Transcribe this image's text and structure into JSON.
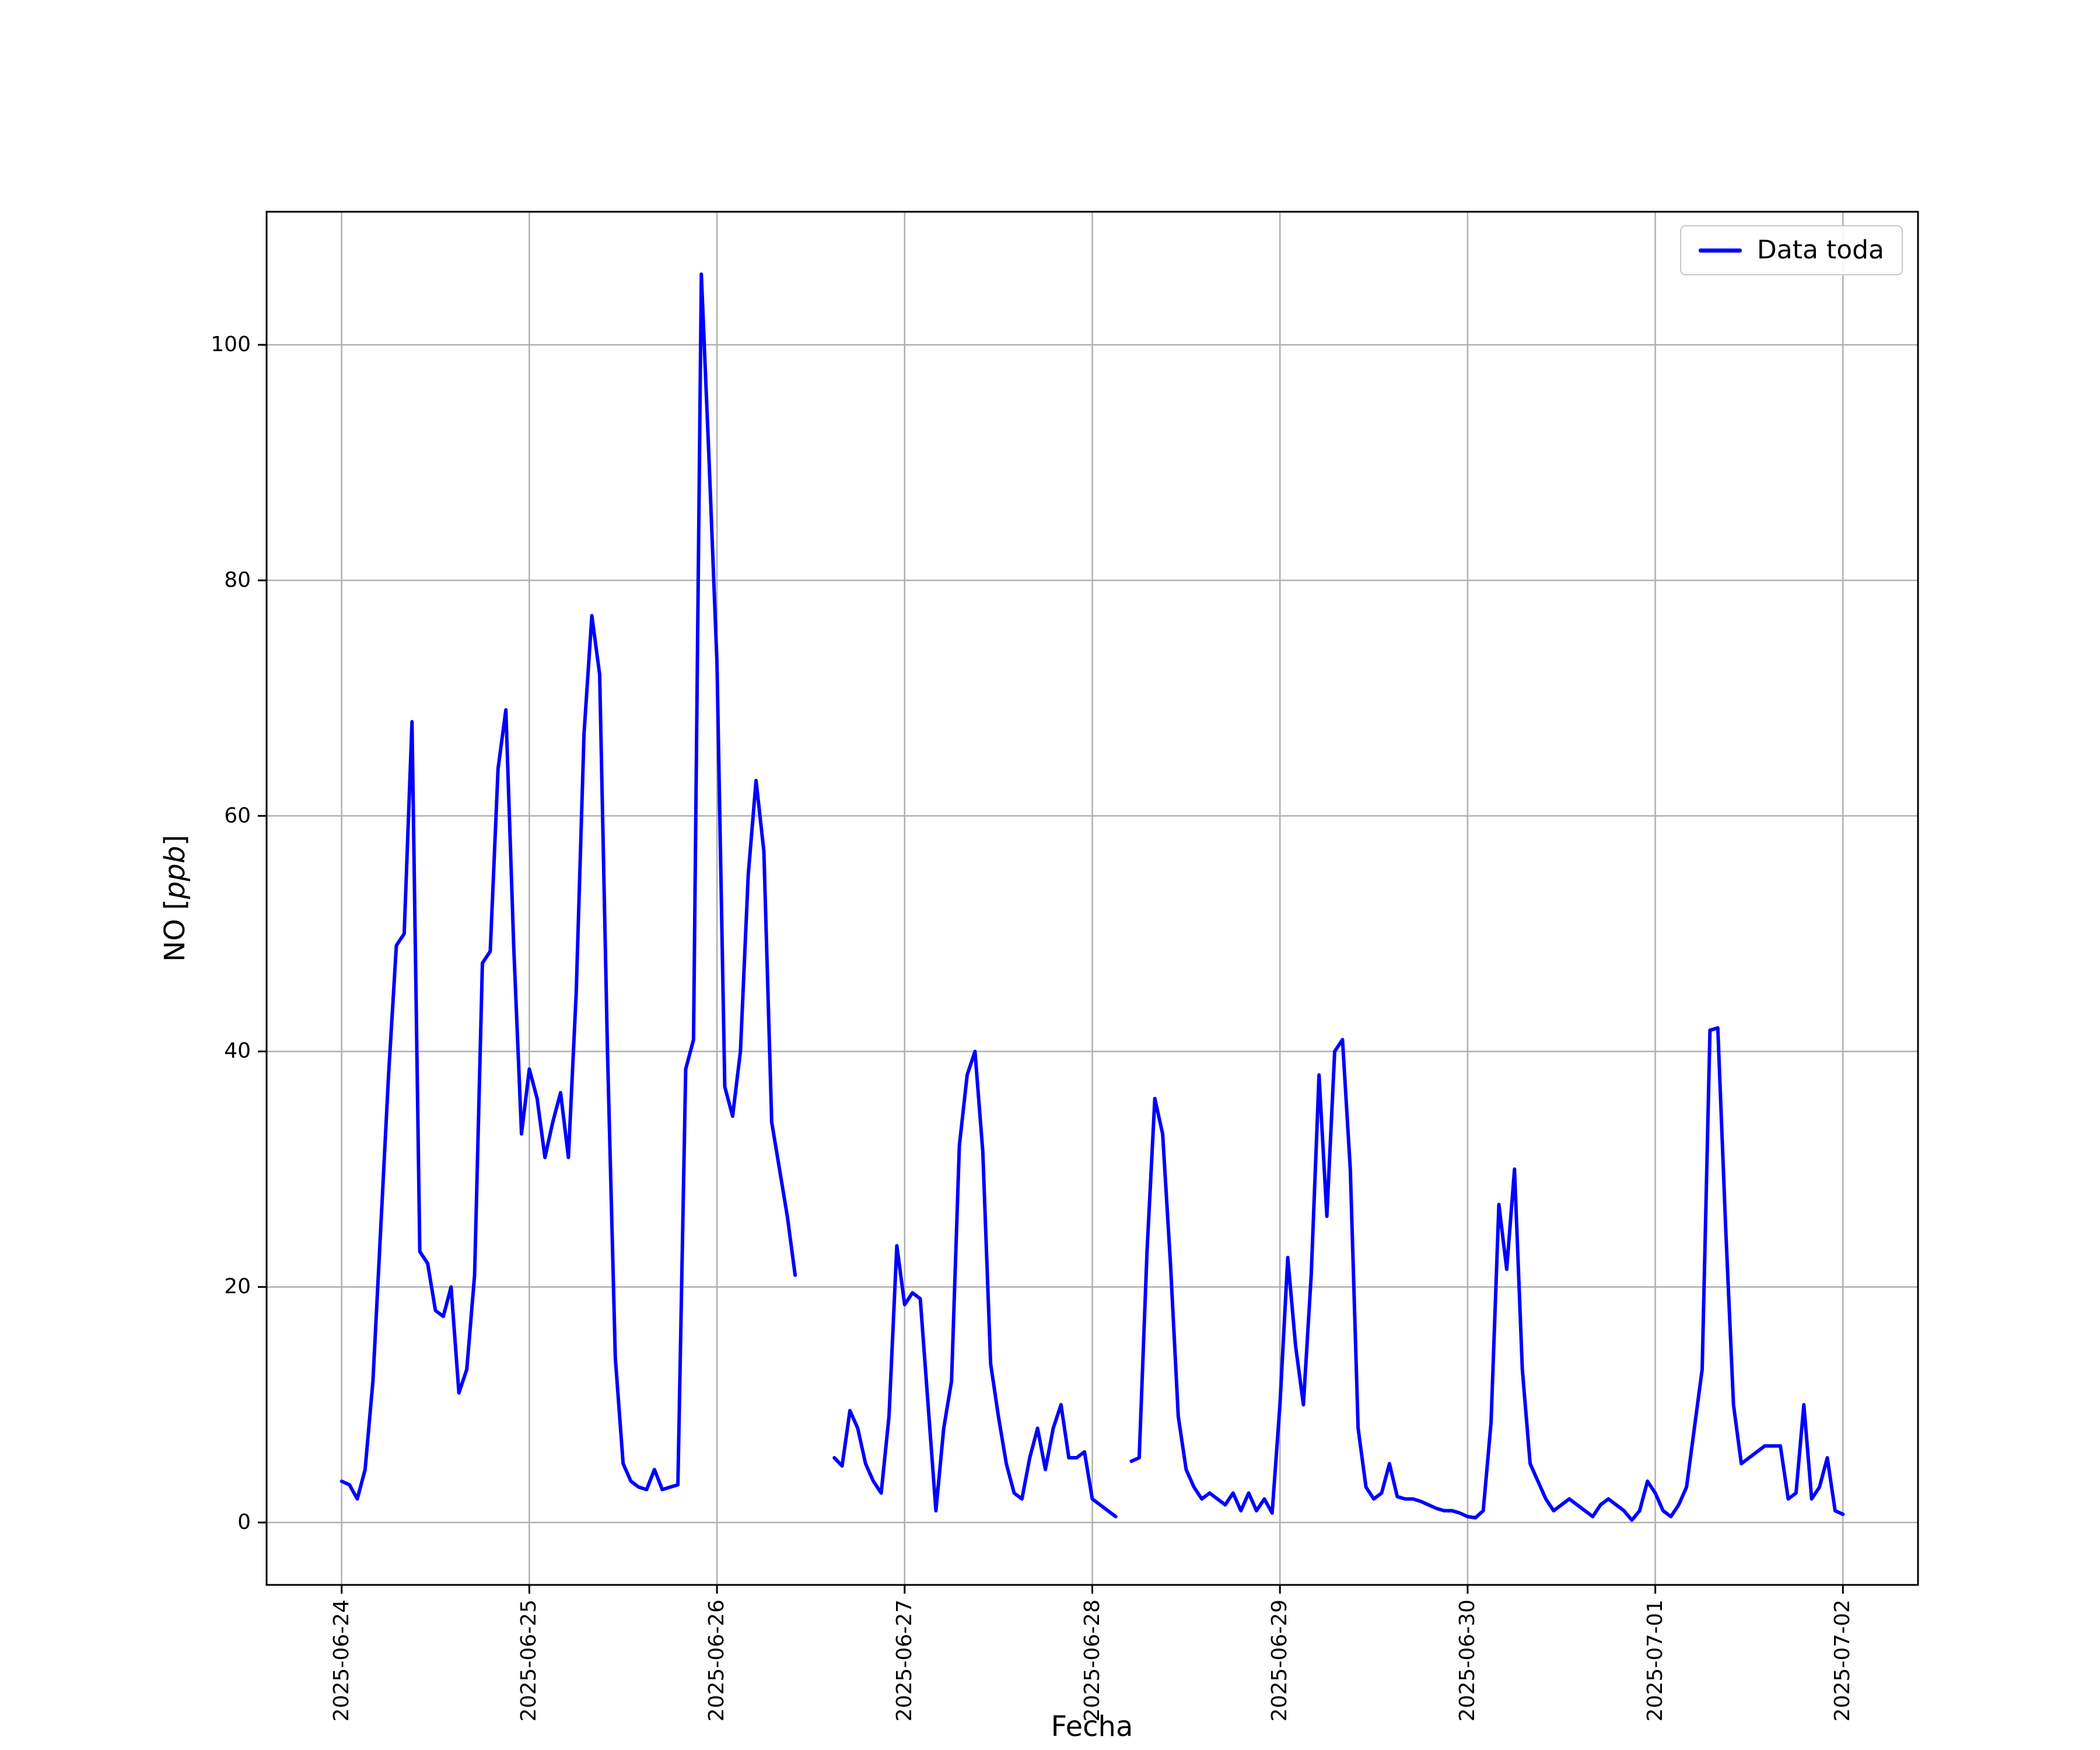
{
  "figure": {
    "background_color": "#ffffff",
    "plot_background_color": "#ffffff",
    "spine_color": "#000000"
  },
  "chart_data": {
    "type": "line",
    "title": "",
    "xlabel": "Fecha",
    "ylabel": "NO [ppb]",
    "ylabel_parts": {
      "prefix": "NO [",
      "italic": "ppb",
      "suffix": "]"
    },
    "grid": true,
    "grid_color": "#b0b0b0",
    "legend": {
      "position": "upper right",
      "entries": [
        {
          "label": "Data toda",
          "color": "#0000ff",
          "marker": "line"
        }
      ]
    },
    "x_axis": {
      "unit": "hours since 2025-06-24 00:00",
      "tick_hours": [
        0,
        24,
        48,
        72,
        96,
        120,
        144,
        168,
        192
      ],
      "tick_labels": [
        "2025-06-24",
        "2025-06-25",
        "2025-06-26",
        "2025-06-27",
        "2025-06-28",
        "2025-06-29",
        "2025-06-30",
        "2025-07-01",
        "2025-07-02"
      ],
      "xlim": [
        -9.6,
        201.6
      ],
      "label_rotation_deg": 90
    },
    "y_axis": {
      "ticks": [
        0,
        20,
        40,
        60,
        80,
        100
      ],
      "ylim": [
        -5.3,
        111.3
      ]
    },
    "series": [
      {
        "name": "Data toda",
        "color": "#0000ff",
        "line_width": 2,
        "points": [
          [
            0,
            3.5
          ],
          [
            1,
            3.2
          ],
          [
            2,
            2
          ],
          [
            3,
            4.5
          ],
          [
            4,
            12
          ],
          [
            5,
            25
          ],
          [
            6,
            38
          ],
          [
            7,
            49
          ],
          [
            8,
            50
          ],
          [
            9,
            68
          ],
          [
            10,
            23
          ],
          [
            11,
            22
          ],
          [
            12,
            18
          ],
          [
            13,
            17.5
          ],
          [
            14,
            20
          ],
          [
            15,
            11
          ],
          [
            16,
            13
          ],
          [
            17,
            21
          ],
          [
            18,
            47.5
          ],
          [
            19,
            48.5
          ],
          [
            20,
            64
          ],
          [
            21,
            69
          ],
          [
            22,
            49
          ],
          [
            23,
            33
          ],
          [
            24,
            38.5
          ],
          [
            25,
            36
          ],
          [
            26,
            31
          ],
          [
            27,
            34
          ],
          [
            28,
            36.5
          ],
          [
            29,
            31
          ],
          [
            30,
            45
          ],
          [
            31,
            67
          ],
          [
            32,
            77
          ],
          [
            33,
            72
          ],
          [
            34,
            40
          ],
          [
            35,
            14
          ],
          [
            36,
            5
          ],
          [
            37,
            3.5
          ],
          [
            38,
            3
          ],
          [
            39,
            2.8
          ],
          [
            40,
            4.5
          ],
          [
            41,
            2.8
          ],
          [
            42,
            3
          ],
          [
            43,
            3.2
          ],
          [
            44,
            38.5
          ],
          [
            45,
            41
          ],
          [
            46,
            106
          ],
          [
            47,
            90
          ],
          [
            48,
            73
          ],
          [
            49,
            37
          ],
          [
            50,
            34.5
          ],
          [
            51,
            40
          ],
          [
            52,
            55
          ],
          [
            53,
            63
          ],
          [
            54,
            57
          ],
          [
            55,
            34
          ],
          [
            56,
            30
          ],
          [
            57,
            26
          ],
          [
            58,
            21
          ],
          [
            63,
            5.5
          ],
          [
            64,
            4.8
          ],
          [
            65,
            9.5
          ],
          [
            66,
            8
          ],
          [
            67,
            5
          ],
          [
            68,
            3.5
          ],
          [
            69,
            2.5
          ],
          [
            70,
            9
          ],
          [
            71,
            23.5
          ],
          [
            72,
            18.5
          ],
          [
            73,
            19.5
          ],
          [
            74,
            19
          ],
          [
            75,
            10
          ],
          [
            76,
            1
          ],
          [
            77,
            8
          ],
          [
            78,
            12
          ],
          [
            79,
            32
          ],
          [
            80,
            38
          ],
          [
            81,
            40
          ],
          [
            82,
            31.5
          ],
          [
            83,
            13.5
          ],
          [
            84,
            9
          ],
          [
            85,
            5
          ],
          [
            86,
            2.5
          ],
          [
            87,
            2
          ],
          [
            88,
            5.5
          ],
          [
            89,
            8
          ],
          [
            90,
            4.5
          ],
          [
            91,
            8
          ],
          [
            92,
            10
          ],
          [
            93,
            5.5
          ],
          [
            94,
            5.5
          ],
          [
            95,
            6
          ],
          [
            96,
            2
          ],
          [
            97,
            1.5
          ],
          [
            98,
            1
          ],
          [
            99,
            0.5
          ],
          [
            101,
            5.2
          ],
          [
            102,
            5.5
          ],
          [
            103,
            23
          ],
          [
            104,
            36
          ],
          [
            105,
            33
          ],
          [
            106,
            22
          ],
          [
            107,
            9
          ],
          [
            108,
            4.5
          ],
          [
            109,
            3
          ],
          [
            110,
            2
          ],
          [
            111,
            2.5
          ],
          [
            112,
            2
          ],
          [
            113,
            1.5
          ],
          [
            114,
            2.5
          ],
          [
            115,
            1
          ],
          [
            116,
            2.5
          ],
          [
            117,
            1
          ],
          [
            118,
            2
          ],
          [
            119,
            0.8
          ],
          [
            120,
            10
          ],
          [
            121,
            22.5
          ],
          [
            122,
            15
          ],
          [
            123,
            10
          ],
          [
            124,
            21
          ],
          [
            125,
            38
          ],
          [
            126,
            26
          ],
          [
            127,
            40
          ],
          [
            128,
            41
          ],
          [
            129,
            30
          ],
          [
            130,
            8
          ],
          [
            131,
            3
          ],
          [
            132,
            2
          ],
          [
            133,
            2.5
          ],
          [
            134,
            5
          ],
          [
            135,
            2.2
          ],
          [
            136,
            2
          ],
          [
            137,
            2
          ],
          [
            138,
            1.8
          ],
          [
            139,
            1.5
          ],
          [
            140,
            1.2
          ],
          [
            141,
            1
          ],
          [
            142,
            1
          ],
          [
            143,
            0.8
          ],
          [
            144,
            0.5
          ],
          [
            145,
            0.4
          ],
          [
            146,
            1
          ],
          [
            147,
            8.5
          ],
          [
            148,
            27
          ],
          [
            149,
            21.5
          ],
          [
            150,
            30
          ],
          [
            151,
            13
          ],
          [
            152,
            5
          ],
          [
            153,
            3.5
          ],
          [
            154,
            2
          ],
          [
            155,
            1
          ],
          [
            156,
            1.5
          ],
          [
            157,
            2
          ],
          [
            158,
            1.5
          ],
          [
            159,
            1
          ],
          [
            160,
            0.5
          ],
          [
            161,
            1.5
          ],
          [
            162,
            2
          ],
          [
            163,
            1.5
          ],
          [
            164,
            1
          ],
          [
            165,
            0.2
          ],
          [
            166,
            1
          ],
          [
            167,
            3.5
          ],
          [
            168,
            2.5
          ],
          [
            169,
            1
          ],
          [
            170,
            0.5
          ],
          [
            171,
            1.5
          ],
          [
            172,
            3
          ],
          [
            173,
            8
          ],
          [
            174,
            13
          ],
          [
            175,
            41.8
          ],
          [
            176,
            42
          ],
          [
            177,
            25
          ],
          [
            178,
            10
          ],
          [
            179,
            5
          ],
          [
            180,
            5.5
          ],
          [
            181,
            6
          ],
          [
            182,
            6.5
          ],
          [
            183,
            6.5
          ],
          [
            184,
            6.5
          ],
          [
            185,
            2
          ],
          [
            186,
            2.5
          ],
          [
            187,
            10
          ],
          [
            188,
            2
          ],
          [
            189,
            3
          ],
          [
            190,
            5.5
          ],
          [
            191,
            1
          ],
          [
            192,
            0.7
          ]
        ]
      }
    ]
  }
}
